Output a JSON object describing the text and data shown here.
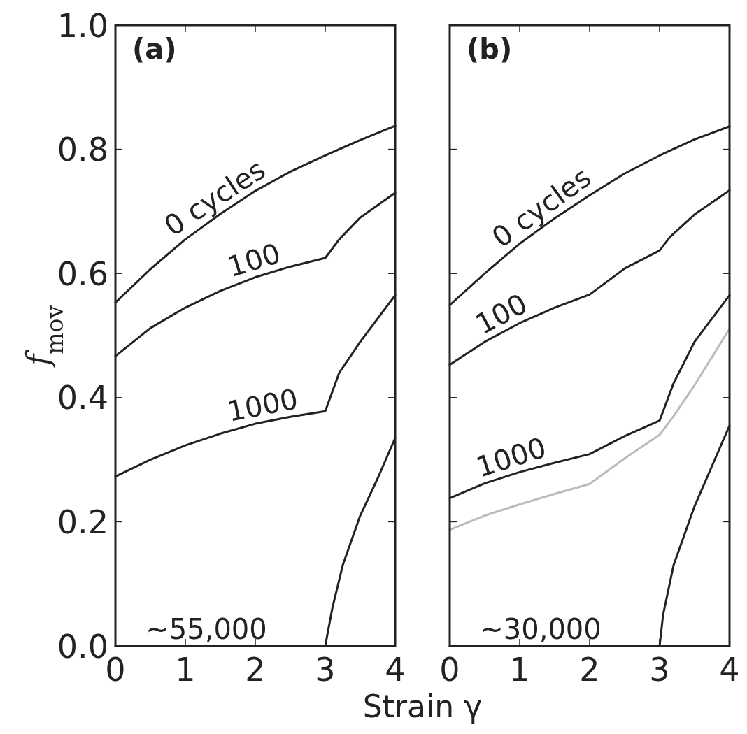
{
  "chart_data": [
    {
      "type": "line",
      "title": "(a)",
      "xlabel": "Strain γ",
      "ylabel": "f$_{mov}$",
      "xlim": [
        0,
        4
      ],
      "ylim": [
        0,
        1
      ],
      "xticks": [
        0,
        1,
        2,
        3,
        4
      ],
      "yticks": [
        {
          "value": 0,
          "label": "0.0"
        },
        0.2,
        0.4,
        0.6,
        0.8,
        {
          "value": 1,
          "label": "1.0"
        }
      ],
      "series": [
        {
          "name": "0 cycles",
          "color": "#222222",
          "x": [
            0,
            0.5,
            1,
            1.5,
            2,
            2.5,
            3,
            3.5,
            4
          ],
          "values": [
            0.553,
            0.607,
            0.655,
            0.696,
            0.733,
            0.764,
            0.79,
            0.815,
            0.838
          ]
        },
        {
          "name": "100",
          "color": "#222222",
          "x": [
            0,
            0.5,
            1,
            1.5,
            2,
            2.5,
            3,
            3.2,
            3.5,
            4
          ],
          "values": [
            0.467,
            0.512,
            0.545,
            0.572,
            0.594,
            0.611,
            0.625,
            0.655,
            0.69,
            0.73
          ]
        },
        {
          "name": "1000",
          "color": "#222222",
          "x": [
            0,
            0.5,
            1,
            1.5,
            2,
            2.5,
            3,
            3.2,
            3.5,
            4
          ],
          "values": [
            0.273,
            0.3,
            0.323,
            0.342,
            0.358,
            0.369,
            0.378,
            0.44,
            0.49,
            0.565
          ]
        },
        {
          "name": "~55,000",
          "color": "#222222",
          "x": [
            0,
            3,
            3.1,
            3.25,
            3.5,
            3.75,
            4
          ],
          "values": [
            0,
            0,
            0.06,
            0.13,
            0.21,
            0.27,
            0.335
          ]
        }
      ]
    },
    {
      "type": "line",
      "title": "(b)",
      "xlim": [
        0,
        4
      ],
      "ylim": [
        0,
        1
      ],
      "xticks": [
        0,
        1,
        2,
        3,
        4
      ],
      "yticks": [
        0,
        0.2,
        0.4,
        0.6,
        0.8,
        1
      ],
      "tick_labels": "x",
      "series": [
        {
          "name": "0 cycles",
          "color": "#222222",
          "x": [
            0,
            0.5,
            1,
            1.5,
            2,
            2.5,
            3,
            3.5,
            4
          ],
          "values": [
            0.549,
            0.6,
            0.648,
            0.689,
            0.726,
            0.761,
            0.79,
            0.816,
            0.837
          ]
        },
        {
          "name": "100",
          "color": "#222222",
          "x": [
            0,
            0.5,
            1,
            1.5,
            2,
            2.5,
            3,
            3.15,
            3.5,
            4
          ],
          "values": [
            0.453,
            0.49,
            0.52,
            0.545,
            0.566,
            0.608,
            0.637,
            0.659,
            0.695,
            0.734
          ]
        },
        {
          "name": "1000",
          "color": "#222222",
          "x": [
            0,
            0.5,
            1,
            1.5,
            2,
            2.5,
            3,
            3.2,
            3.5,
            4
          ],
          "values": [
            0.238,
            0.262,
            0.28,
            0.295,
            0.309,
            0.338,
            0.363,
            0.423,
            0.49,
            0.565
          ]
        },
        {
          "color": "#bbbbbb",
          "x": [
            0,
            0.5,
            1,
            1.5,
            2,
            2.5,
            3,
            3.2,
            3.5,
            4
          ],
          "values": [
            0.187,
            0.21,
            0.228,
            0.245,
            0.261,
            0.302,
            0.34,
            0.37,
            0.42,
            0.511
          ]
        },
        {
          "name": "~30,000",
          "color": "#222222",
          "x": [
            0,
            3,
            3.05,
            3.2,
            3.5,
            3.75,
            4
          ],
          "values": [
            0,
            0,
            0.05,
            0.13,
            0.225,
            0.29,
            0.355
          ]
        }
      ]
    }
  ]
}
